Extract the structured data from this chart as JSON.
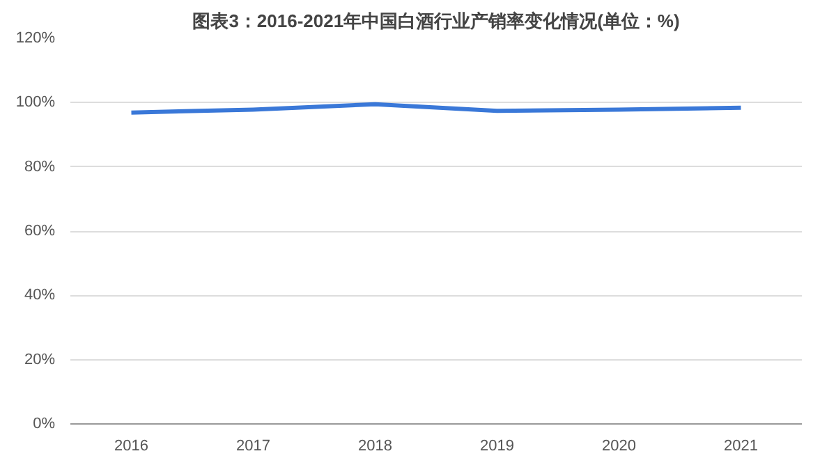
{
  "chart_data": {
    "type": "line",
    "title": "图表3：2016-2021年中国白酒行业产销率变化情况(单位：%)",
    "categories": [
      "2016",
      "2017",
      "2018",
      "2019",
      "2020",
      "2021"
    ],
    "series": [
      {
        "color": "#3a78d8",
        "values": [
          96.9,
          97.8,
          99.5,
          97.4,
          97.8,
          98.4
        ]
      }
    ],
    "ylim": [
      0,
      120
    ],
    "yticks": [
      {
        "value": 0,
        "label": "0%"
      },
      {
        "value": 20,
        "label": "20%"
      },
      {
        "value": 40,
        "label": "40%"
      },
      {
        "value": 60,
        "label": "60%"
      },
      {
        "value": 80,
        "label": "80%"
      },
      {
        "value": 100,
        "label": "100%"
      },
      {
        "value": 120,
        "label": "120%"
      }
    ],
    "grid": "y",
    "marker": "none",
    "line_style": "solid"
  }
}
